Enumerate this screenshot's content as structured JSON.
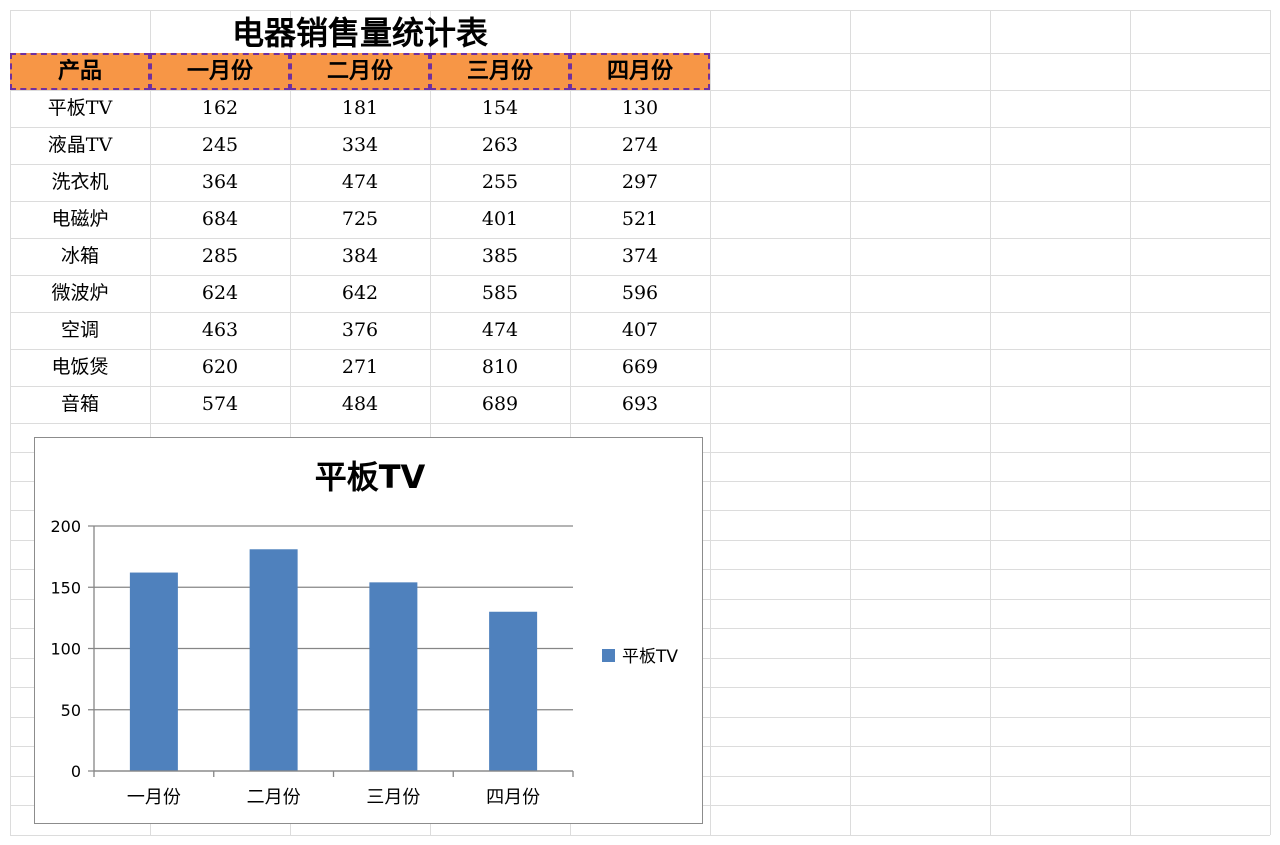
{
  "spreadsheet": {
    "title": "电器销售量统计表",
    "headers": [
      "产品",
      "一月份",
      "二月份",
      "三月份",
      "四月份"
    ],
    "rows": [
      [
        "平板TV",
        "162",
        "181",
        "154",
        "130"
      ],
      [
        "液晶TV",
        "245",
        "334",
        "263",
        "274"
      ],
      [
        "洗衣机",
        "364",
        "474",
        "255",
        "297"
      ],
      [
        "电磁炉",
        "684",
        "725",
        "401",
        "521"
      ],
      [
        "冰箱",
        "285",
        "384",
        "385",
        "374"
      ],
      [
        "微波炉",
        "624",
        "642",
        "585",
        "596"
      ],
      [
        "空调",
        "463",
        "376",
        "474",
        "407"
      ],
      [
        "电饭煲",
        "620",
        "271",
        "810",
        "669"
      ],
      [
        "音箱",
        "574",
        "484",
        "689",
        "693"
      ]
    ],
    "header_fill": "#f79646",
    "header_border": "#7030a0",
    "gridline_color": "#dcdcdc"
  },
  "chart_data": {
    "type": "bar",
    "title": "平板TV",
    "categories": [
      "一月份",
      "二月份",
      "三月份",
      "四月份"
    ],
    "series": [
      {
        "name": "平板TV",
        "values": [
          162,
          181,
          154,
          130
        ],
        "color": "#4f81bd"
      }
    ],
    "ylim": [
      0,
      200
    ],
    "yticks": [
      0,
      50,
      100,
      150,
      200
    ],
    "grid": true,
    "legend_position": "right"
  }
}
